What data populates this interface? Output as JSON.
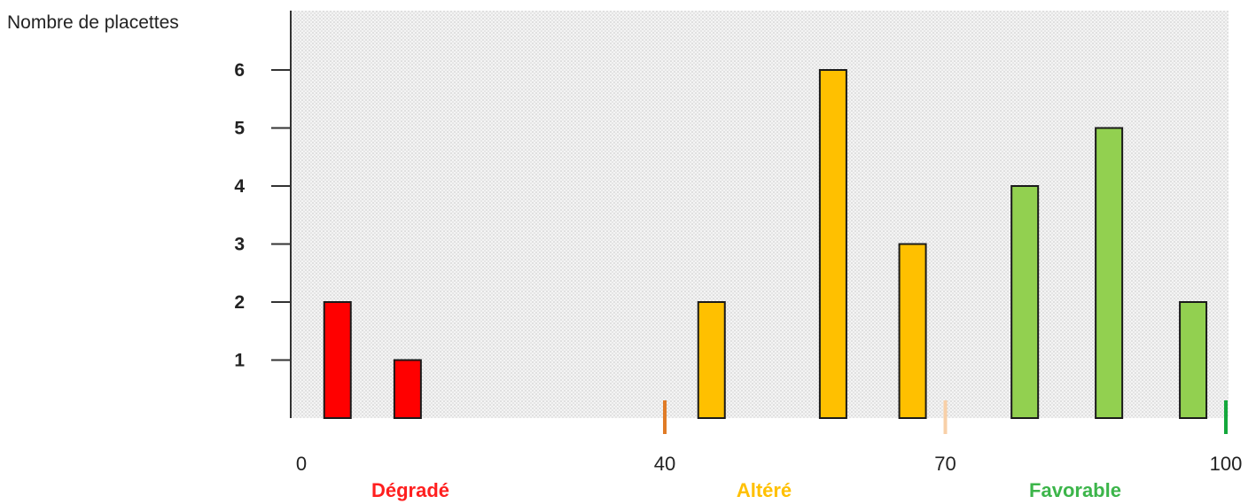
{
  "chart_data": {
    "type": "bar",
    "ylabel": "Nombre de placettes",
    "xlabel": "",
    "xlim": [
      0,
      100
    ],
    "ylim": [
      0,
      6.5
    ],
    "yticks": [
      "1",
      "2",
      "3",
      "4",
      "5",
      "6"
    ],
    "xticks": [
      {
        "value": 0,
        "label": "0"
      },
      {
        "value": 40,
        "label": "40"
      },
      {
        "value": 70,
        "label": "70"
      },
      {
        "value": 100,
        "label": "100"
      }
    ],
    "zones": [
      {
        "label": "Dégradé",
        "from": 0,
        "to": 40,
        "color": "#ff1f1f"
      },
      {
        "label": "Altéré",
        "from": 40,
        "to": 70,
        "color": "#ffc000"
      },
      {
        "label": "Favorable",
        "from": 70,
        "to": 100,
        "color": "#3cb54a"
      }
    ],
    "bars": [
      {
        "x": 5,
        "value": 2,
        "color": "#ff0000"
      },
      {
        "x": 12.5,
        "value": 1,
        "color": "#ff0000"
      },
      {
        "x": 45,
        "value": 2,
        "color": "#ffc000"
      },
      {
        "x": 58,
        "value": 6,
        "color": "#ffc000"
      },
      {
        "x": 66.5,
        "value": 3,
        "color": "#ffc000"
      },
      {
        "x": 78.5,
        "value": 4,
        "color": "#92d050"
      },
      {
        "x": 87.5,
        "value": 5,
        "color": "#92d050"
      },
      {
        "x": 96.5,
        "value": 2,
        "color": "#92d050"
      }
    ],
    "grid": false,
    "background_pattern": "dotted-gray"
  }
}
